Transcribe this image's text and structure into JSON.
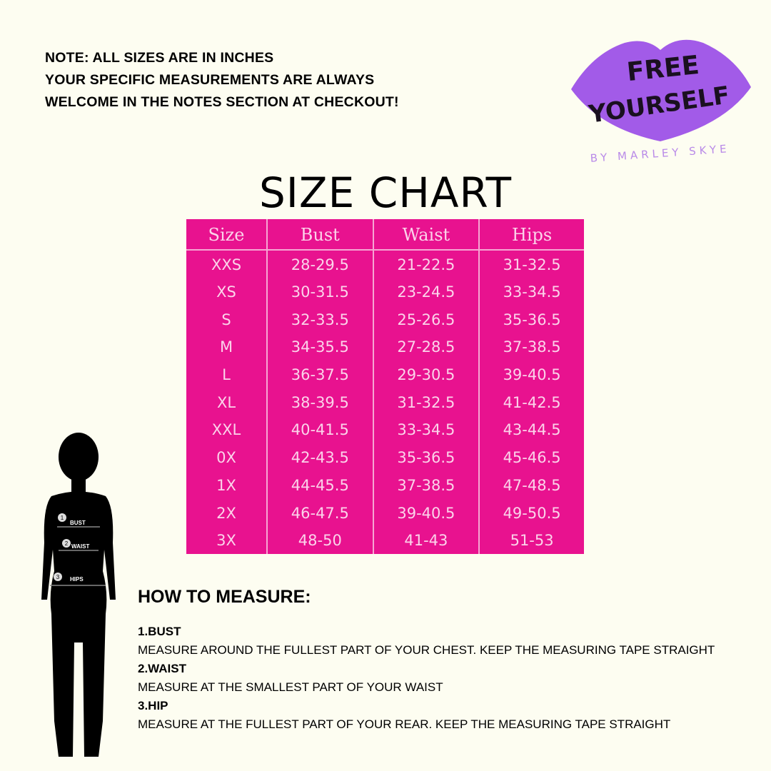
{
  "note": [
    "NOTE: ALL SIZES ARE IN INCHES",
    "YOUR SPECIFIC MEASUREMENTS ARE ALWAYS",
    "WELCOME IN THE NOTES SECTION AT CHECKOUT!"
  ],
  "logo": {
    "line1": "FREE",
    "line2": "YOURSELF",
    "tagline": "BY MARLEY SKYE",
    "color": "#a25be8"
  },
  "title": "SIZE CHART",
  "table": {
    "headers": [
      "Size",
      "Bust",
      "Waist",
      "Hips"
    ],
    "rows": [
      [
        "XXS",
        "28-29.5",
        "21-22.5",
        "31-32.5"
      ],
      [
        "XS",
        "30-31.5",
        "23-24.5",
        "33-34.5"
      ],
      [
        "S",
        "32-33.5",
        "25-26.5",
        "35-36.5"
      ],
      [
        "M",
        "34-35.5",
        "27-28.5",
        "37-38.5"
      ],
      [
        "L",
        "36-37.5",
        "29-30.5",
        "39-40.5"
      ],
      [
        "XL",
        "38-39.5",
        "31-32.5",
        "41-42.5"
      ],
      [
        "XXL",
        "40-41.5",
        "33-34.5",
        "43-44.5"
      ],
      [
        "0X",
        "42-43.5",
        "35-36.5",
        "45-46.5"
      ],
      [
        "1X",
        "44-45.5",
        "37-38.5",
        "47-48.5"
      ],
      [
        "2X",
        "46-47.5",
        "39-40.5",
        "49-50.5"
      ],
      [
        "3X",
        "48-50",
        "41-43",
        "51-53"
      ]
    ],
    "color": "#e8128f"
  },
  "figure": {
    "labels": [
      "BUST",
      "WAIST",
      "HIPS"
    ],
    "numbers": [
      "1",
      "2",
      "3"
    ]
  },
  "how": {
    "title": "HOW TO MEASURE:",
    "steps": [
      {
        "heading": "1.BUST",
        "text": "MEASURE AROUND THE FULLEST PART OF YOUR CHEST. KEEP THE MEASURING TAPE STRAIGHT"
      },
      {
        "heading": "2.WAIST",
        "text": "MEASURE AT THE SMALLEST PART OF YOUR WAIST"
      },
      {
        "heading": "3.HIP",
        "text": "MEASURE AT THE FULLEST PART OF YOUR REAR. KEEP THE MEASURING TAPE STRAIGHT"
      }
    ]
  }
}
